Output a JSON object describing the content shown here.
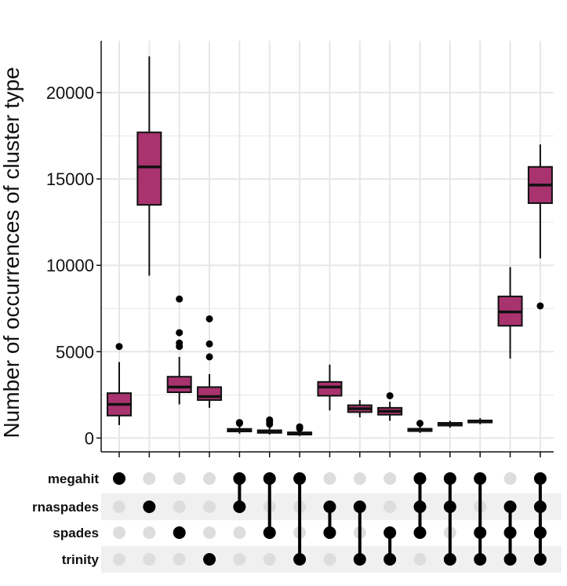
{
  "chart_data": {
    "type": "boxplot",
    "ylabel": "Number of occurrences of cluster type",
    "ylim": [
      -800,
      23000
    ],
    "yticks": [
      0,
      5000,
      10000,
      15000,
      20000
    ],
    "grid": true,
    "sets": [
      "megahit",
      "rnaspades",
      "spades",
      "trinity"
    ],
    "intersections": [
      {
        "members": [
          "megahit"
        ],
        "box": {
          "whisker_low": 750,
          "q1": 1300,
          "median": 1950,
          "q3": 2600,
          "whisker_high": 4400
        },
        "outliers": [
          5300
        ]
      },
      {
        "members": [
          "rnaspades"
        ],
        "box": {
          "whisker_low": 9400,
          "q1": 13500,
          "median": 15700,
          "q3": 17700,
          "whisker_high": 22100
        },
        "outliers": []
      },
      {
        "members": [
          "spades"
        ],
        "box": {
          "whisker_low": 1950,
          "q1": 2650,
          "median": 2950,
          "q3": 3550,
          "whisker_high": 4700
        },
        "outliers": [
          5300,
          5500,
          6100,
          8050
        ]
      },
      {
        "members": [
          "trinity"
        ],
        "box": {
          "whisker_low": 1750,
          "q1": 2200,
          "median": 2400,
          "q3": 2950,
          "whisker_high": 3700
        },
        "outliers": [
          4700,
          5450,
          6900
        ]
      },
      {
        "members": [
          "megahit",
          "rnaspades"
        ],
        "box": {
          "whisker_low": 250,
          "q1": 380,
          "median": 450,
          "q3": 530,
          "whisker_high": 720
        },
        "outliers": [
          850,
          900
        ]
      },
      {
        "members": [
          "megahit",
          "spades"
        ],
        "box": {
          "whisker_low": 200,
          "q1": 300,
          "median": 370,
          "q3": 450,
          "whisker_high": 650
        },
        "outliers": [
          800,
          950,
          1050
        ]
      },
      {
        "members": [
          "megahit",
          "trinity"
        ],
        "box": {
          "whisker_low": 120,
          "q1": 200,
          "median": 260,
          "q3": 330,
          "whisker_high": 450
        },
        "outliers": [
          550,
          650
        ]
      },
      {
        "members": [
          "rnaspades",
          "spades"
        ],
        "box": {
          "whisker_low": 1600,
          "q1": 2450,
          "median": 2950,
          "q3": 3250,
          "whisker_high": 4250
        },
        "outliers": []
      },
      {
        "members": [
          "rnaspades",
          "trinity"
        ],
        "box": {
          "whisker_low": 1200,
          "q1": 1500,
          "median": 1700,
          "q3": 1900,
          "whisker_high": 2200
        },
        "outliers": []
      },
      {
        "members": [
          "spades",
          "trinity"
        ],
        "box": {
          "whisker_low": 1000,
          "q1": 1350,
          "median": 1550,
          "q3": 1750,
          "whisker_high": 2100
        },
        "outliers": [
          2450
        ]
      },
      {
        "members": [
          "megahit",
          "rnaspades",
          "spades"
        ],
        "box": {
          "whisker_low": 300,
          "q1": 400,
          "median": 460,
          "q3": 540,
          "whisker_high": 700
        },
        "outliers": [
          850
        ]
      },
      {
        "members": [
          "megahit",
          "rnaspades",
          "trinity"
        ],
        "box": {
          "whisker_low": 600,
          "q1": 720,
          "median": 800,
          "q3": 880,
          "whisker_high": 1000
        },
        "outliers": []
      },
      {
        "members": [
          "megahit",
          "spades",
          "trinity"
        ],
        "box": {
          "whisker_low": 800,
          "q1": 900,
          "median": 950,
          "q3": 1020,
          "whisker_high": 1150
        },
        "outliers": []
      },
      {
        "members": [
          "rnaspades",
          "spades",
          "trinity"
        ],
        "box": {
          "whisker_low": 4600,
          "q1": 6500,
          "median": 7300,
          "q3": 8200,
          "whisker_high": 9900
        },
        "outliers": []
      },
      {
        "members": [
          "megahit",
          "rnaspades",
          "spades",
          "trinity"
        ],
        "box": {
          "whisker_low": 10400,
          "q1": 13600,
          "median": 14650,
          "q3": 15700,
          "whisker_high": 17000
        },
        "outliers": [
          7650
        ]
      }
    ],
    "colors": {
      "box_fill": "#A8336F",
      "box_stroke": "#111111",
      "grid": "#E6E6E6",
      "dot_active": "#000000",
      "dot_inactive": "#DDDDDD",
      "stripe": "#F0F0F0"
    }
  }
}
